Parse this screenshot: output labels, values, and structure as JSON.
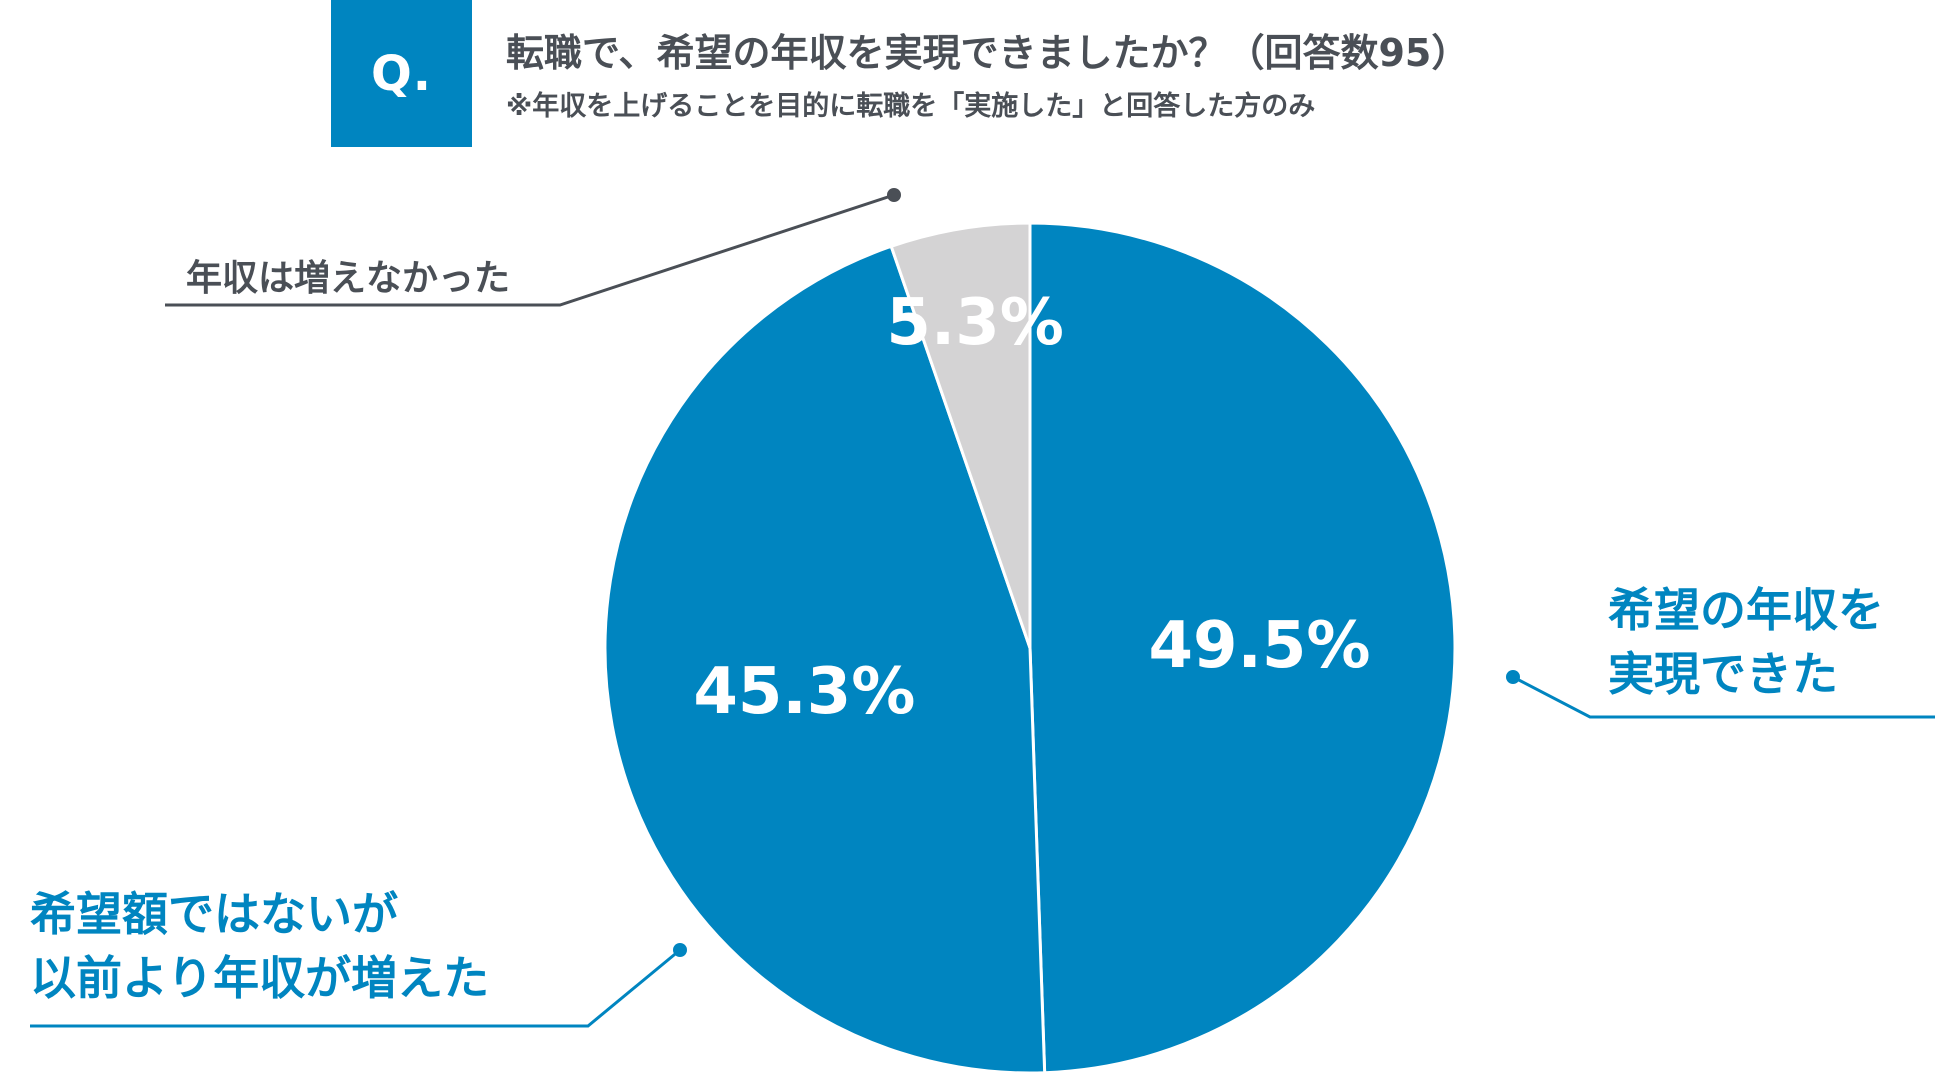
{
  "header": {
    "q_label": "Q.",
    "title": "転職で、希望の年収を実現できましたか？（回答数95）",
    "note": "※年収を上げることを目的に転職を「実施した」と回答した方のみ"
  },
  "colors": {
    "accent_blue": "#0085c0",
    "grey_slice": "#d4d3d4",
    "dark_text": "#4a4f56",
    "white": "#ffffff"
  },
  "chart_data": {
    "type": "pie",
    "title": "転職で、希望の年収を実現できましたか？（回答数95）",
    "slices": [
      {
        "label_lines": [
          "希望の年収を",
          "実現できた"
        ],
        "value": 49.5,
        "value_label": "49.5%",
        "color": "#0085c0"
      },
      {
        "label_lines": [
          "希望額ではないが",
          "以前より年収が増えた"
        ],
        "value": 45.3,
        "value_label": "45.3%",
        "color": "#0085c0"
      },
      {
        "label_lines": [
          "年収は増えなかった"
        ],
        "value": 5.3,
        "value_label": "5.3%",
        "color": "#d4d3d4"
      }
    ],
    "legend": "callout",
    "start_angle": "top",
    "direction": "clockwise"
  }
}
